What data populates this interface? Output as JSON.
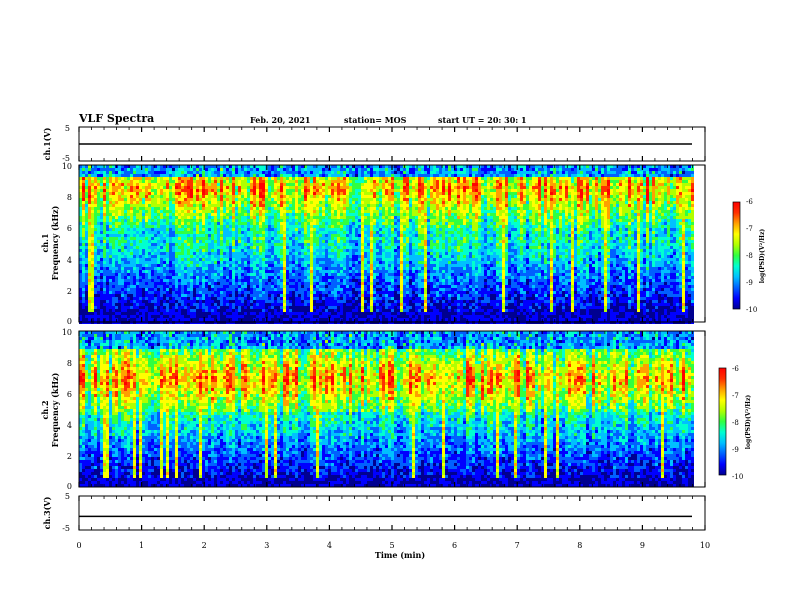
{
  "header": {
    "title": "VLF  Spectra",
    "date": "Feb. 20, 2021",
    "station": "station= MOS",
    "start_ut": "start  UT  =   20: 30: 1"
  },
  "colors": {
    "spectrogram_scale": [
      "#000090",
      "#0000ff",
      "#0060ff",
      "#00c0ff",
      "#00ffd0",
      "#30ff40",
      "#b0ff00",
      "#ffff00",
      "#ffa000",
      "#ff3000",
      "#ff0000"
    ],
    "background_dark": "#000030",
    "axis": "#000000"
  },
  "chart_data": [
    {
      "name_key": "ch1-voltage",
      "type": "line",
      "ylabel": "ch.1(V)",
      "ylim": [
        -5,
        5
      ],
      "yticks": [
        "5",
        "-5"
      ],
      "x_range_min": [
        0,
        10
      ],
      "description_values": {
        "baseline_volts": 0
      }
    },
    {
      "name_key": "ch1-spectrogram",
      "type": "heatmap",
      "ylabel_line1": "ch.1",
      "ylabel_line2": "Frequency (kHz)",
      "ylim_khz": [
        0,
        10
      ],
      "yticks": [
        "0",
        "2",
        "4",
        "6",
        "8",
        "10"
      ],
      "x_range_min": [
        0,
        10
      ],
      "data_end_min": 9.8,
      "colorbar": {
        "label": "log(PSD)(V²/Hz)",
        "range": [
          -10,
          -6
        ],
        "ticks": [
          "-6",
          "-7",
          "-8",
          "-9",
          "-10"
        ]
      },
      "bands_khz": {
        "hot_low": 5.5,
        "hot_high": 9.0,
        "peak": 8.6
      }
    },
    {
      "name_key": "ch2-spectrogram",
      "type": "heatmap",
      "ylabel_line1": "ch.2",
      "ylabel_line2": "Frequency (kHz)",
      "ylim_khz": [
        0,
        10
      ],
      "yticks": [
        "0",
        "2",
        "4",
        "6",
        "8",
        "10"
      ],
      "x_range_min": [
        0,
        10
      ],
      "data_end_min": 9.8,
      "colorbar": {
        "label": "log(PSD)(V²/Hz)",
        "range": [
          -10,
          -6
        ],
        "ticks": [
          "-6",
          "-7",
          "-8",
          "-9",
          "-10"
        ]
      },
      "bands_khz": {
        "hot_low": 5.0,
        "hot_high": 8.5,
        "peak": 7.0
      }
    },
    {
      "name_key": "ch3-voltage",
      "type": "line",
      "ylabel": "ch.3(V)",
      "ylim": [
        -5,
        5
      ],
      "yticks": [
        "5",
        "-5"
      ],
      "x_range_min": [
        0,
        10
      ],
      "xlabel": "Time  (min)",
      "xticks": [
        "0",
        "1",
        "2",
        "3",
        "4",
        "5",
        "6",
        "7",
        "8",
        "9",
        "10"
      ],
      "description_values": {
        "baseline_volts": -1
      }
    }
  ]
}
